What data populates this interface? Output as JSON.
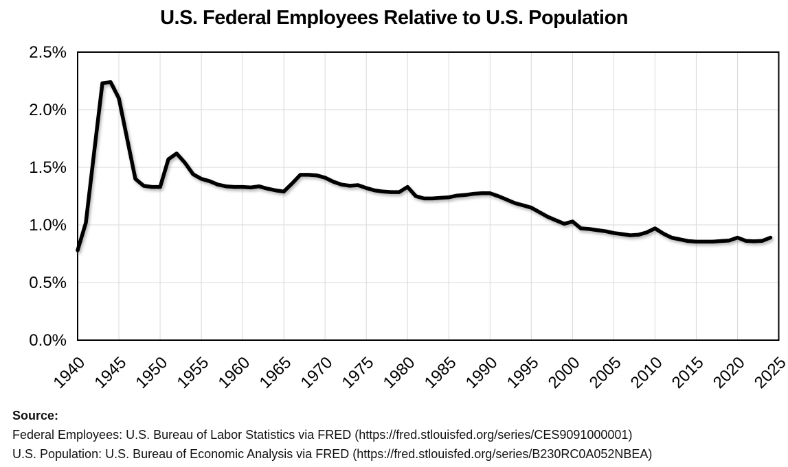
{
  "chart_data": {
    "type": "line",
    "title": "U.S. Federal Employees Relative to U.S. Population",
    "series_name": "Federal employees as percent of U.S. population",
    "x": [
      1940,
      1941,
      1942,
      1943,
      1944,
      1945,
      1946,
      1947,
      1948,
      1949,
      1950,
      1951,
      1952,
      1953,
      1954,
      1955,
      1956,
      1957,
      1958,
      1959,
      1960,
      1961,
      1962,
      1963,
      1964,
      1965,
      1966,
      1967,
      1968,
      1969,
      1970,
      1971,
      1972,
      1973,
      1974,
      1975,
      1976,
      1977,
      1978,
      1979,
      1980,
      1981,
      1982,
      1983,
      1984,
      1985,
      1986,
      1987,
      1988,
      1989,
      1990,
      1991,
      1992,
      1993,
      1994,
      1995,
      1996,
      1997,
      1998,
      1999,
      2000,
      2001,
      2002,
      2003,
      2004,
      2005,
      2006,
      2007,
      2008,
      2009,
      2010,
      2011,
      2012,
      2013,
      2014,
      2015,
      2016,
      2017,
      2018,
      2019,
      2020,
      2021,
      2022,
      2023,
      2024
    ],
    "values": [
      0.78,
      1.02,
      1.63,
      2.23,
      2.24,
      2.1,
      1.75,
      1.4,
      1.34,
      1.33,
      1.33,
      1.57,
      1.62,
      1.54,
      1.44,
      1.4,
      1.38,
      1.35,
      1.335,
      1.33,
      1.33,
      1.325,
      1.335,
      1.315,
      1.3,
      1.29,
      1.36,
      1.435,
      1.435,
      1.43,
      1.41,
      1.375,
      1.35,
      1.34,
      1.345,
      1.32,
      1.3,
      1.29,
      1.285,
      1.285,
      1.33,
      1.25,
      1.23,
      1.23,
      1.235,
      1.24,
      1.255,
      1.26,
      1.27,
      1.275,
      1.275,
      1.25,
      1.22,
      1.19,
      1.17,
      1.15,
      1.11,
      1.07,
      1.04,
      1.01,
      1.03,
      0.97,
      0.965,
      0.955,
      0.945,
      0.93,
      0.92,
      0.91,
      0.915,
      0.935,
      0.97,
      0.925,
      0.89,
      0.875,
      0.86,
      0.855,
      0.855,
      0.855,
      0.86,
      0.865,
      0.89,
      0.862,
      0.858,
      0.862,
      0.89
    ],
    "xlabel": "",
    "ylabel": "",
    "xlim": [
      1940,
      2025
    ],
    "ylim": [
      0,
      2.5
    ],
    "x_ticks": [
      1940,
      1945,
      1950,
      1955,
      1960,
      1965,
      1970,
      1975,
      1980,
      1985,
      1990,
      1995,
      2000,
      2005,
      2010,
      2015,
      2020,
      2025
    ],
    "y_ticks": [
      {
        "value": 0.0,
        "label": "0.0%"
      },
      {
        "value": 0.5,
        "label": "0.5%"
      },
      {
        "value": 1.0,
        "label": "1.0%"
      },
      {
        "value": 1.5,
        "label": "1.5%"
      },
      {
        "value": 2.0,
        "label": "2.0%"
      },
      {
        "value": 2.5,
        "label": "2.5%"
      }
    ],
    "grid": true,
    "legend": "none",
    "line_color": "#000000",
    "grid_color": "#d9d9d9",
    "axis_color": "#000000",
    "background_color": "#ffffff"
  },
  "source": {
    "label": "Source:",
    "lines": [
      "Federal Employees: U.S. Bureau of Labor Statistics via FRED (https://fred.stlouisfed.org/series/CES9091000001)",
      "U.S. Population: U.S. Bureau of Economic Analysis via FRED (https://fred.stlouisfed.org/series/B230RC0A052NBEA)"
    ]
  }
}
